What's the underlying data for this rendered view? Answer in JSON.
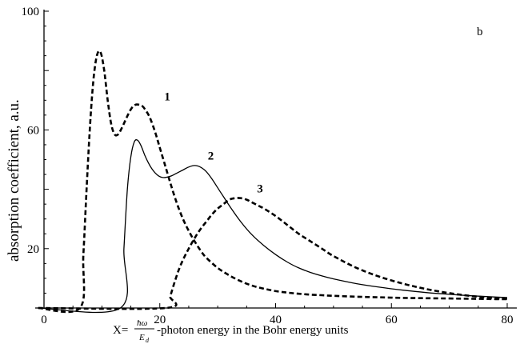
{
  "chart_data": {
    "type": "line",
    "panel_label": "b",
    "ylabel": "absorption  coefficient, a.u.",
    "xlabel": {
      "prefix": "X=",
      "fraction_numerator": "ħω",
      "fraction_denominator": "E",
      "fraction_denominator_subscript": "d",
      "suffix": "-photon energy  in the Bohr energy units"
    },
    "xlim": [
      0,
      80
    ],
    "ylim": [
      0,
      100
    ],
    "xticks": [
      "0",
      "20",
      "40",
      "60",
      "80"
    ],
    "yticks": [
      "20",
      "60",
      "100"
    ],
    "ytick_values": [
      20,
      60,
      100
    ],
    "xtick_values": [
      0,
      20,
      40,
      60,
      80
    ],
    "series": [
      {
        "name": "1",
        "style": "dashed",
        "x": [
          -1,
          6.2,
          6.8,
          7.4,
          8.0,
          8.6,
          9.2,
          9.8,
          10.4,
          11.0,
          11.6,
          12.2,
          12.8,
          13.4,
          14.0,
          14.6,
          15.2,
          15.8,
          16.4,
          17.0,
          17.6,
          18.2,
          18.8,
          19.4,
          20.0,
          21,
          22,
          23,
          24,
          25,
          26,
          27,
          28,
          30,
          32,
          34,
          36,
          38,
          40,
          42,
          44,
          46,
          48,
          50,
          54,
          58,
          62,
          66,
          70,
          74,
          78,
          80
        ],
        "y": [
          0,
          0,
          18,
          42,
          63,
          78,
          85.5,
          86,
          80,
          70,
          62,
          58.5,
          58.5,
          60.5,
          63,
          65.5,
          67.5,
          68.5,
          68.5,
          68,
          66.5,
          64.5,
          61.5,
          58,
          54,
          47.5,
          41,
          35,
          30,
          26,
          22.5,
          19.5,
          17,
          13.5,
          11,
          9,
          7.5,
          6.5,
          5.7,
          5.2,
          4.8,
          4.5,
          4.3,
          4.1,
          3.8,
          3.6,
          3.4,
          3.3,
          3.2,
          3.1,
          3.0,
          3.0
        ]
      },
      {
        "name": "2",
        "style": "solid",
        "x": [
          -1,
          13.2,
          13.8,
          14.4,
          15.0,
          15.6,
          16.2,
          16.8,
          17.4,
          18.0,
          18.6,
          19.2,
          19.8,
          20.4,
          21.0,
          22,
          23,
          24,
          25,
          26,
          27,
          28,
          29,
          30,
          31,
          32,
          34,
          36,
          38,
          40,
          42,
          44,
          46,
          48,
          50,
          54,
          58,
          62,
          66,
          70,
          74,
          78,
          80
        ],
        "y": [
          0,
          0,
          20,
          40,
          51,
          56,
          56.5,
          54.5,
          51.5,
          49,
          47,
          45.5,
          44.5,
          44,
          44,
          44.5,
          45.5,
          46.5,
          47.5,
          48,
          47.5,
          46,
          43.5,
          40.5,
          37.5,
          34.5,
          29,
          24.5,
          21,
          18,
          15.5,
          13.5,
          12,
          10.8,
          9.8,
          8.2,
          7,
          6,
          5.2,
          4.6,
          4.1,
          3.7,
          3.5
        ]
      },
      {
        "name": "3",
        "style": "dashed",
        "x": [
          -1,
          21,
          21.8,
          22.6,
          23.4,
          24.2,
          25,
          26,
          27,
          28,
          29,
          30,
          31,
          32,
          33,
          34,
          35,
          36,
          37,
          38,
          40,
          42,
          44,
          46,
          48,
          50,
          54,
          58,
          62,
          66,
          70,
          74,
          78,
          80
        ],
        "y": [
          0,
          0,
          4,
          9,
          13.5,
          17,
          20,
          23.5,
          26.5,
          29,
          31.5,
          33.5,
          35,
          36.5,
          37,
          37,
          36.5,
          35.5,
          34.5,
          33.5,
          31,
          28,
          25,
          22.5,
          20,
          17.5,
          13.5,
          10.5,
          8.2,
          6.4,
          5.0,
          4.0,
          3.3,
          3.1
        ]
      }
    ],
    "annotations": [
      {
        "text": "1",
        "x": 21.3,
        "y": 70
      },
      {
        "text": "2",
        "x": 28.8,
        "y": 50
      },
      {
        "text": "3",
        "x": 37.3,
        "y": 39
      }
    ]
  }
}
